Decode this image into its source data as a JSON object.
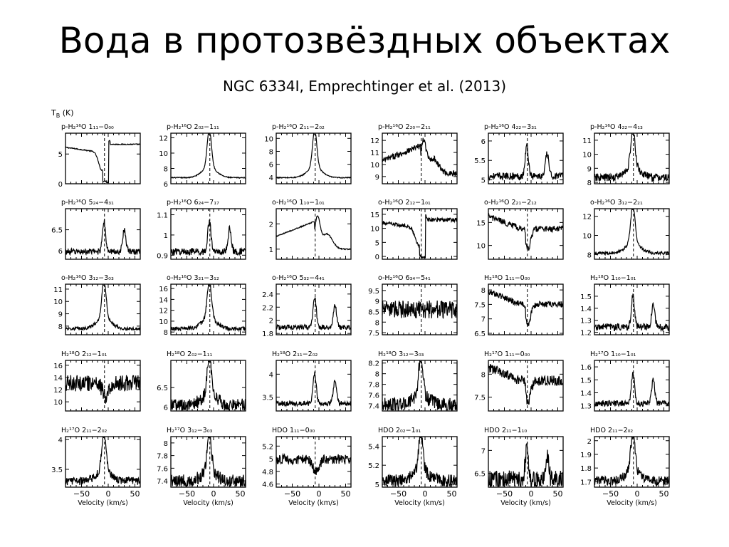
{
  "slide": {
    "title": "Вода в протозвёздных объектах",
    "subtitle": "NGC 6334I, Emprechtinger et al. (2013)"
  },
  "chart_data": {
    "type": "line",
    "xlabel": "Velocity (km/s)",
    "ylabel": "T_B (K)",
    "xlim": [
      -80,
      60
    ],
    "x_ticks": [
      -50,
      0,
      50
    ],
    "panels": [
      {
        "label": "p-H₂¹⁶O 1₁₁−0₀₀",
        "yticks": [
          "0",
          "5"
        ],
        "ylim": [
          0,
          8.5
        ]
      },
      {
        "label": "p-H₂¹⁶O 2₀₂−1₁₁",
        "yticks": [
          "6",
          "8",
          "10",
          "12"
        ],
        "ylim": [
          6,
          12.6
        ]
      },
      {
        "label": "p-H₂¹⁶O 2₁₁−2₀₂",
        "yticks": [
          "4",
          "6",
          "8",
          "10"
        ],
        "ylim": [
          3,
          10.8
        ]
      },
      {
        "label": "p-H₂¹⁶O 2₂₀−2₁₁",
        "yticks": [
          "9",
          "10",
          "11",
          "12"
        ],
        "ylim": [
          8.4,
          12.6
        ]
      },
      {
        "label": "p-H₂¹⁶O 4₂₂−3₃₁",
        "yticks": [
          "5",
          "5.5",
          "6"
        ],
        "ylim": [
          4.9,
          6.2
        ]
      },
      {
        "label": "p-H₂¹⁶O 4₂₂−4₁₃",
        "yticks": [
          "8",
          "9",
          "10",
          "11"
        ],
        "ylim": [
          7.9,
          11.5
        ]
      },
      {
        "label": "p-H₂¹⁶O 5₂₄−4₃₁",
        "yticks": [
          "6",
          "6.5"
        ],
        "ylim": [
          5.8,
          7
        ]
      },
      {
        "label": "p-H₂¹⁶O 6₂₄−7₁₇",
        "yticks": [
          "0.9",
          "1",
          "1.1"
        ],
        "ylim": [
          0.88,
          1.13
        ]
      },
      {
        "label": "o-H₂¹⁶O 1₁₀−1₀₁",
        "yticks": [
          "1",
          "2"
        ],
        "ylim": [
          0.6,
          2.6
        ]
      },
      {
        "label": "o-H₂¹⁶O 2₁₂−1₀₁",
        "yticks": [
          "0",
          "5",
          "10",
          "15"
        ],
        "ylim": [
          -1,
          17
        ]
      },
      {
        "label": "o-H₂¹⁶O 2₂₁−2₁₂",
        "yticks": [
          "10",
          "15"
        ],
        "ylim": [
          7,
          18
        ]
      },
      {
        "label": "o-H₂¹⁶O 3₁₂−2₂₁",
        "yticks": [
          "8",
          "10",
          "12"
        ],
        "ylim": [
          7.5,
          12.8
        ]
      },
      {
        "label": "o-H₂¹⁶O 3₁₂−3₀₃",
        "yticks": [
          "8",
          "9",
          "10",
          "11"
        ],
        "ylim": [
          7.3,
          11.4
        ]
      },
      {
        "label": "o-H₂¹⁶O 3₂₁−3₁₂",
        "yticks": [
          "8",
          "10",
          "12",
          "14",
          "16"
        ],
        "ylim": [
          7.5,
          16.8
        ]
      },
      {
        "label": "o-H₂¹⁶O 5₃₂−4₄₁",
        "yticks": [
          "1.8",
          "2",
          "2.2",
          "2.4"
        ],
        "ylim": [
          1.78,
          2.55
        ]
      },
      {
        "label": "o-H₂¹⁶O 6₃₄−5₄₁",
        "yticks": [
          "7.5",
          "8",
          "8.5",
          "9",
          "9.5"
        ],
        "ylim": [
          7.4,
          9.8
        ]
      },
      {
        "label": "H₂¹⁸O 1₁₁−0₀₀",
        "yticks": [
          "6.5",
          "7",
          "7.5",
          "8"
        ],
        "ylim": [
          6.45,
          8.2
        ]
      },
      {
        "label": "H₂¹⁸O 1₁₀−1₀₁",
        "yticks": [
          "1.2",
          "1.3",
          "1.4",
          "1.5"
        ],
        "ylim": [
          1.18,
          1.6
        ]
      },
      {
        "label": "H₂¹⁸O 2₁₂−1₀₁",
        "yticks": [
          "10",
          "12",
          "14",
          "16"
        ],
        "ylim": [
          8.5,
          16.8
        ]
      },
      {
        "label": "H₂¹⁸O 2₀₂−1₁₁",
        "yticks": [
          "6",
          "6.5"
        ],
        "ylim": [
          5.9,
          7.2
        ]
      },
      {
        "label": "H₂¹⁸O 2₁₁−2₀₂",
        "yticks": [
          "3.5",
          "4"
        ],
        "ylim": [
          3.2,
          4.3
        ]
      },
      {
        "label": "H₂¹⁸O 3₁₂−3₀₃",
        "yticks": [
          "7.4",
          "7.6",
          "7.8",
          "8",
          "8.2"
        ],
        "ylim": [
          7.3,
          8.25
        ]
      },
      {
        "label": "H₂¹⁷O 1₁₁−0₀₀",
        "yticks": [
          "7.5",
          "8"
        ],
        "ylim": [
          7.2,
          8.3
        ]
      },
      {
        "label": "H₂¹⁷O 1₁₀−1₀₁",
        "yticks": [
          "1.3",
          "1.4",
          "1.5",
          "1.6"
        ],
        "ylim": [
          1.26,
          1.65
        ]
      },
      {
        "label": "H₂¹⁷O 2₁₁−2₀₂",
        "yticks": [
          "3.5",
          "4"
        ],
        "ylim": [
          3.2,
          4.05
        ]
      },
      {
        "label": "H₂¹⁷O 3₁₂−3₀₃",
        "yticks": [
          "7.4",
          "7.6",
          "7.8",
          "8"
        ],
        "ylim": [
          7.3,
          8.1
        ]
      },
      {
        "label": "HDO 1₁₁−0₀₀",
        "yticks": [
          "4.6",
          "4.8",
          "5",
          "5.2"
        ],
        "ylim": [
          4.55,
          5.35
        ]
      },
      {
        "label": "HDO 2₀₂−1₀₁",
        "yticks": [
          "5",
          "5.2",
          "5.4"
        ],
        "ylim": [
          4.97,
          5.5
        ]
      },
      {
        "label": "HDO 2₁₁−1₁₀",
        "yticks": [
          "6.5",
          "7"
        ],
        "ylim": [
          6.2,
          7.3
        ]
      },
      {
        "label": "HDO 2₁₁−2₀₂",
        "yticks": [
          "1.7",
          "1.8",
          "1.9",
          "2"
        ],
        "ylim": [
          1.66,
          2.03
        ]
      }
    ]
  }
}
